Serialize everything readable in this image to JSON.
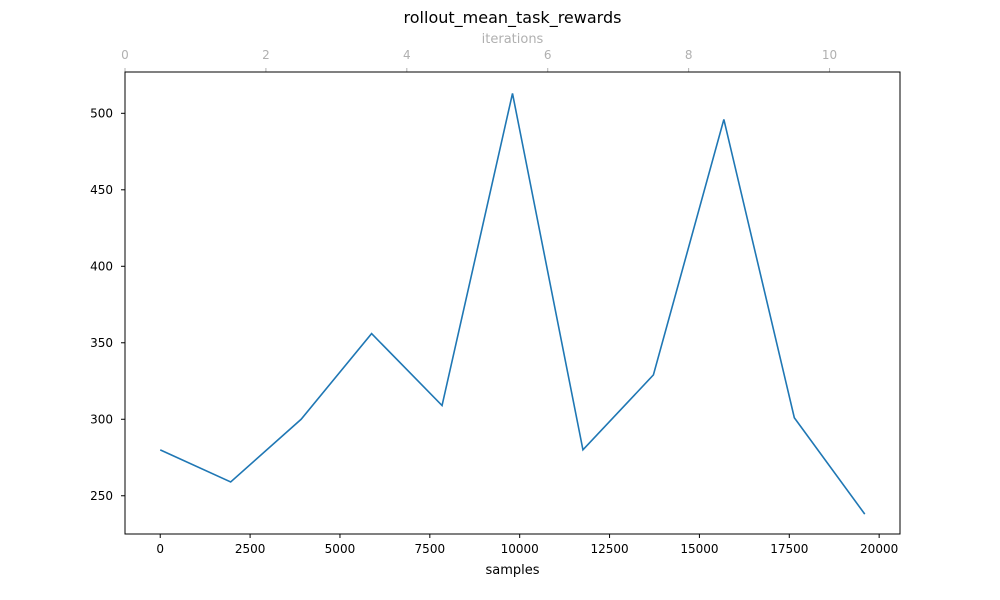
{
  "chart_data": {
    "type": "line",
    "title": "rollout_mean_task_rewards",
    "xlabel": "samples",
    "ylabel": "",
    "top_xlabel": "iterations",
    "xlim": [
      -980,
      20580
    ],
    "ylim": [
      225,
      527
    ],
    "top_xlim": [
      0,
      11
    ],
    "x_ticks": [
      0,
      2500,
      5000,
      7500,
      10000,
      12500,
      15000,
      17500,
      20000
    ],
    "x_tick_labels": [
      "0",
      "2500",
      "5000",
      "7500",
      "10000",
      "12500",
      "15000",
      "17500",
      "20000"
    ],
    "y_ticks": [
      250,
      300,
      350,
      400,
      450,
      500
    ],
    "y_tick_labels": [
      "250",
      "300",
      "350",
      "400",
      "450",
      "500"
    ],
    "top_ticks": [
      0,
      2,
      4,
      6,
      8,
      10
    ],
    "top_tick_labels": [
      "0",
      "2",
      "4",
      "6",
      "8",
      "10"
    ],
    "grid": false,
    "series": [
      {
        "color": "#1f77b4",
        "x": [
          0,
          1960,
          3920,
          5880,
          7840,
          9800,
          11760,
          13720,
          15680,
          17640,
          19600
        ],
        "y": [
          280,
          259,
          300,
          356,
          309,
          513,
          280,
          329,
          496,
          301,
          238
        ]
      }
    ]
  },
  "colors": {
    "line": "#1f77b4",
    "top_axis": "#b0b0b0",
    "axis": "#000000"
  }
}
